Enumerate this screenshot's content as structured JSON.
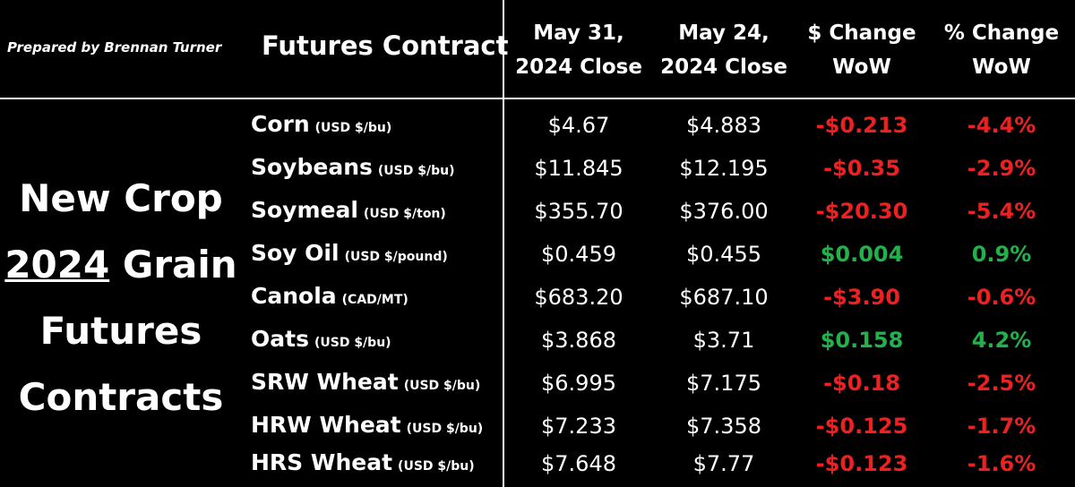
{
  "header": {
    "prepared_by": "Prepared by Brennan Turner",
    "contract_label": "Futures Contract",
    "col_close_1a": "May 31,",
    "col_close_1b": "2024 Close",
    "col_close_2a": "May 24,",
    "col_close_2b": "2024 Close",
    "col_dollar_a": "$ Change",
    "col_dollar_b": "WoW",
    "col_pct_a": "% Change",
    "col_pct_b": "WoW"
  },
  "side_title": {
    "line1": "New Crop",
    "line2_year": "2024",
    "line2_rest": " Grain",
    "line3": "Futures",
    "line4": "Contracts"
  },
  "colors": {
    "negative": "#ee2020",
    "positive": "#22b24c",
    "background": "#000000",
    "text": "#ffffff"
  },
  "rows": [
    {
      "name": "Corn",
      "unit": "(USD $/bu)",
      "may31": "$4.67",
      "may24": "$4.883",
      "dollar_change": "-$0.213",
      "pct_change": "-4.4%",
      "direction": "neg"
    },
    {
      "name": "Soybeans",
      "unit": "(USD $/bu)",
      "may31": "$11.845",
      "may24": "$12.195",
      "dollar_change": "-$0.35",
      "pct_change": "-2.9%",
      "direction": "neg"
    },
    {
      "name": "Soymeal",
      "unit": "(USD $/ton)",
      "may31": "$355.70",
      "may24": "$376.00",
      "dollar_change": "-$20.30",
      "pct_change": "-5.4%",
      "direction": "neg"
    },
    {
      "name": "Soy Oil",
      "unit": "(USD $/pound)",
      "may31": "$0.459",
      "may24": "$0.455",
      "dollar_change": "$0.004",
      "pct_change": "0.9%",
      "direction": "pos"
    },
    {
      "name": "Canola",
      "unit": "(CAD/MT)",
      "may31": "$683.20",
      "may24": "$687.10",
      "dollar_change": "-$3.90",
      "pct_change": "-0.6%",
      "direction": "neg"
    },
    {
      "name": "Oats",
      "unit": "(USD $/bu)",
      "may31": "$3.868",
      "may24": "$3.71",
      "dollar_change": "$0.158",
      "pct_change": "4.2%",
      "direction": "pos"
    },
    {
      "name": "SRW Wheat",
      "unit": "(USD $/bu)",
      "may31": "$6.995",
      "may24": "$7.175",
      "dollar_change": "-$0.18",
      "pct_change": "-2.5%",
      "direction": "neg"
    },
    {
      "name": "HRW Wheat",
      "unit": "(USD $/bu)",
      "may31": "$7.233",
      "may24": "$7.358",
      "dollar_change": "-$0.125",
      "pct_change": "-1.7%",
      "direction": "neg"
    },
    {
      "name": "HRS Wheat",
      "unit": "(USD $/bu)",
      "may31": "$7.648",
      "may24": "$7.77",
      "dollar_change": "-$0.123",
      "pct_change": "-1.6%",
      "direction": "neg"
    }
  ]
}
